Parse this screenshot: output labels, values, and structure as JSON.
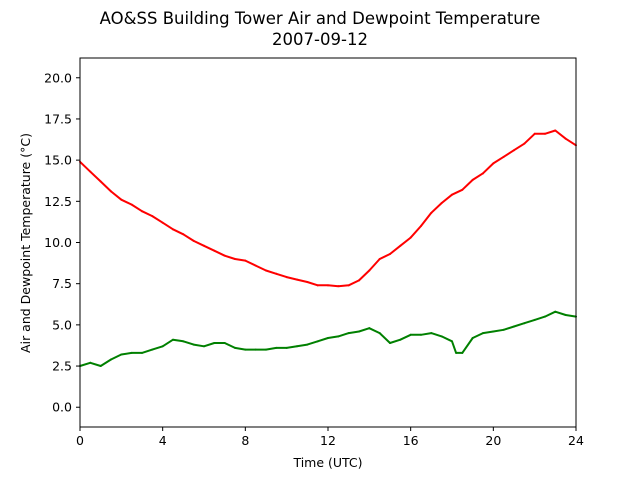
{
  "chart_data": {
    "type": "line",
    "title": "AO&SS Building Tower Air and Dewpoint Temperature",
    "subtitle": "2007-09-12",
    "xlabel": "Time (UTC)",
    "ylabel": "Air and Dewpoint Temperature (°C)",
    "xlim": [
      0,
      24
    ],
    "ylim": [
      -1.2,
      21.2
    ],
    "xticks": [
      0,
      4,
      8,
      12,
      16,
      20,
      24
    ],
    "xtick_labels": [
      "0",
      "4",
      "8",
      "12",
      "16",
      "20",
      "24"
    ],
    "yticks": [
      0,
      2.5,
      5,
      7.5,
      10,
      12.5,
      15,
      17.5,
      20
    ],
    "ytick_labels": [
      "0.0",
      "2.5",
      "5.0",
      "7.5",
      "10.0",
      "12.5",
      "15.0",
      "17.5",
      "20.0"
    ],
    "grid": false,
    "series": [
      {
        "color": "#ff0000",
        "x": [
          0,
          0.5,
          1,
          1.5,
          2,
          2.5,
          3,
          3.5,
          4,
          4.5,
          5,
          5.5,
          6,
          6.5,
          7,
          7.5,
          8,
          8.5,
          9,
          9.5,
          10,
          10.5,
          11,
          11.5,
          12,
          12.5,
          13,
          13.5,
          14,
          14.5,
          15,
          15.5,
          16,
          16.5,
          17,
          17.5,
          18,
          18.5,
          19,
          19.5,
          20,
          20.5,
          21,
          21.5,
          22,
          22.5,
          23,
          23.5,
          24
        ],
        "y": [
          14.9,
          14.3,
          13.7,
          13.1,
          12.6,
          12.3,
          11.9,
          11.6,
          11.2,
          10.8,
          10.5,
          10.1,
          9.8,
          9.5,
          9.2,
          9.0,
          8.9,
          8.6,
          8.3,
          8.1,
          7.9,
          7.75,
          7.6,
          7.4,
          7.4,
          7.35,
          7.4,
          7.7,
          8.3,
          9.0,
          9.3,
          9.8,
          10.3,
          11.0,
          11.8,
          12.4,
          12.9,
          13.2,
          13.8,
          14.2,
          14.8,
          15.2,
          15.6,
          16.0,
          16.6,
          16.6,
          16.8,
          16.3,
          15.9
        ]
      },
      {
        "color": "#008000",
        "x": [
          0,
          0.5,
          1,
          1.5,
          2,
          2.5,
          3,
          3.5,
          4,
          4.5,
          5,
          5.5,
          6,
          6.5,
          7,
          7.5,
          8,
          8.5,
          9,
          9.5,
          10,
          10.5,
          11,
          11.5,
          12,
          12.5,
          13,
          13.5,
          14,
          14.5,
          15,
          15.5,
          16,
          16.5,
          17,
          17.5,
          18,
          18.2,
          18.5,
          19,
          19.5,
          20,
          20.5,
          21,
          21.5,
          22,
          22.5,
          23,
          23.5,
          24
        ],
        "y": [
          2.5,
          2.7,
          2.5,
          2.9,
          3.2,
          3.3,
          3.3,
          3.5,
          3.7,
          4.1,
          4.0,
          3.8,
          3.7,
          3.9,
          3.9,
          3.6,
          3.5,
          3.5,
          3.5,
          3.6,
          3.6,
          3.7,
          3.8,
          4.0,
          4.2,
          4.3,
          4.5,
          4.6,
          4.8,
          4.5,
          3.9,
          4.1,
          4.4,
          4.4,
          4.5,
          4.3,
          4.0,
          3.3,
          3.3,
          4.2,
          4.5,
          4.6,
          4.7,
          4.9,
          5.1,
          5.3,
          5.5,
          5.8,
          5.6,
          5.5
        ]
      }
    ]
  }
}
